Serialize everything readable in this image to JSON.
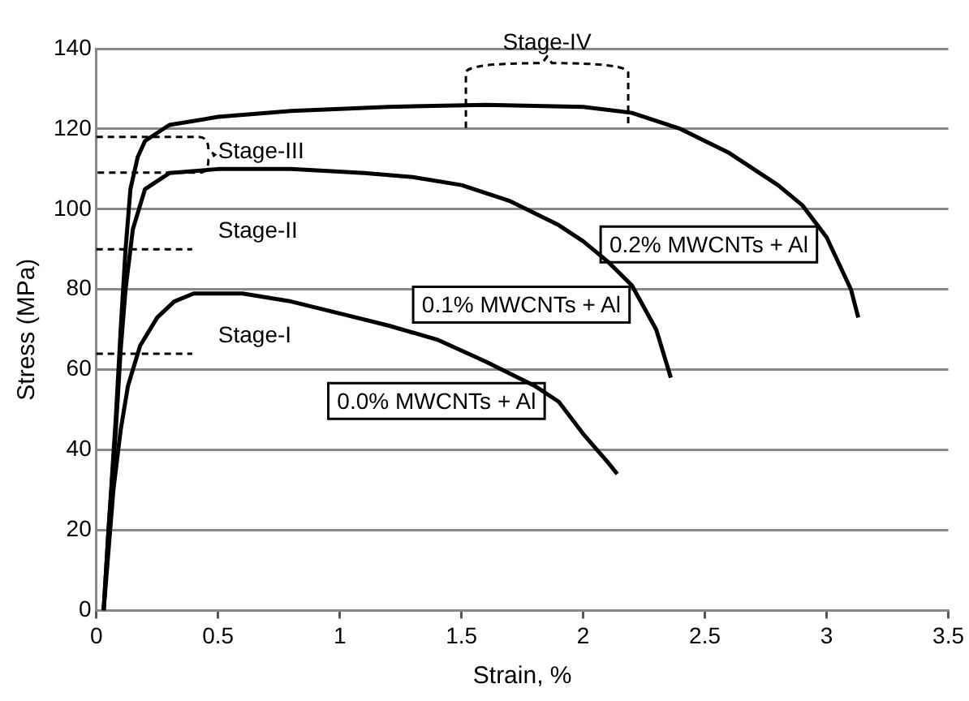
{
  "chart_data": {
    "type": "line",
    "xlabel": "Strain, %",
    "ylabel": "Stress (MPa)",
    "xlim": [
      0,
      3.5
    ],
    "xticks": [
      0,
      0.5,
      1,
      1.5,
      2,
      2.5,
      3,
      3.5
    ],
    "ylim": [
      0,
      140
    ],
    "yticks": [
      0,
      20,
      40,
      60,
      80,
      100,
      120,
      140
    ],
    "grid": "y",
    "legend": false,
    "marker": "none",
    "line_style": "solid",
    "series": [
      {
        "name": "0.0% MWCNTs + Al",
        "color": "#000000",
        "x": [
          0.03,
          0.05,
          0.07,
          0.1,
          0.13,
          0.18,
          0.25,
          0.32,
          0.4,
          0.6,
          0.8,
          1.0,
          1.2,
          1.4,
          1.6,
          1.8,
          1.9,
          2.0,
          2.1,
          2.14
        ],
        "values": [
          0,
          15,
          30,
          45,
          56,
          66,
          73,
          77,
          79,
          79,
          77,
          74,
          71,
          67.5,
          62,
          56,
          52,
          44,
          37,
          34
        ]
      },
      {
        "name": "0.1% MWCNTs + Al",
        "color": "#000000",
        "x": [
          0.03,
          0.05,
          0.08,
          0.1,
          0.12,
          0.15,
          0.2,
          0.3,
          0.5,
          0.8,
          1.1,
          1.3,
          1.5,
          1.7,
          1.9,
          2.0,
          2.1,
          2.2,
          2.3,
          2.36
        ],
        "values": [
          0,
          20,
          45,
          65,
          80,
          95,
          105,
          109,
          110,
          110,
          109,
          108,
          106,
          102,
          96,
          92,
          87,
          81,
          70,
          58
        ]
      },
      {
        "name": "0.2% MWCNTs + Al",
        "color": "#000000",
        "x": [
          0.03,
          0.05,
          0.08,
          0.1,
          0.12,
          0.14,
          0.17,
          0.2,
          0.3,
          0.5,
          0.8,
          1.2,
          1.6,
          2.0,
          2.2,
          2.4,
          2.6,
          2.8,
          2.9,
          3.0,
          3.1,
          3.13
        ],
        "values": [
          0,
          20,
          48,
          70,
          90,
          105,
          113,
          117,
          121,
          123,
          124.5,
          125.5,
          126,
          125.5,
          124,
          120,
          114,
          106,
          101,
          93,
          80,
          73
        ]
      }
    ],
    "annotations": [
      "Stage-I",
      "Stage-II",
      "Stage-III",
      "Stage-IV"
    ]
  }
}
